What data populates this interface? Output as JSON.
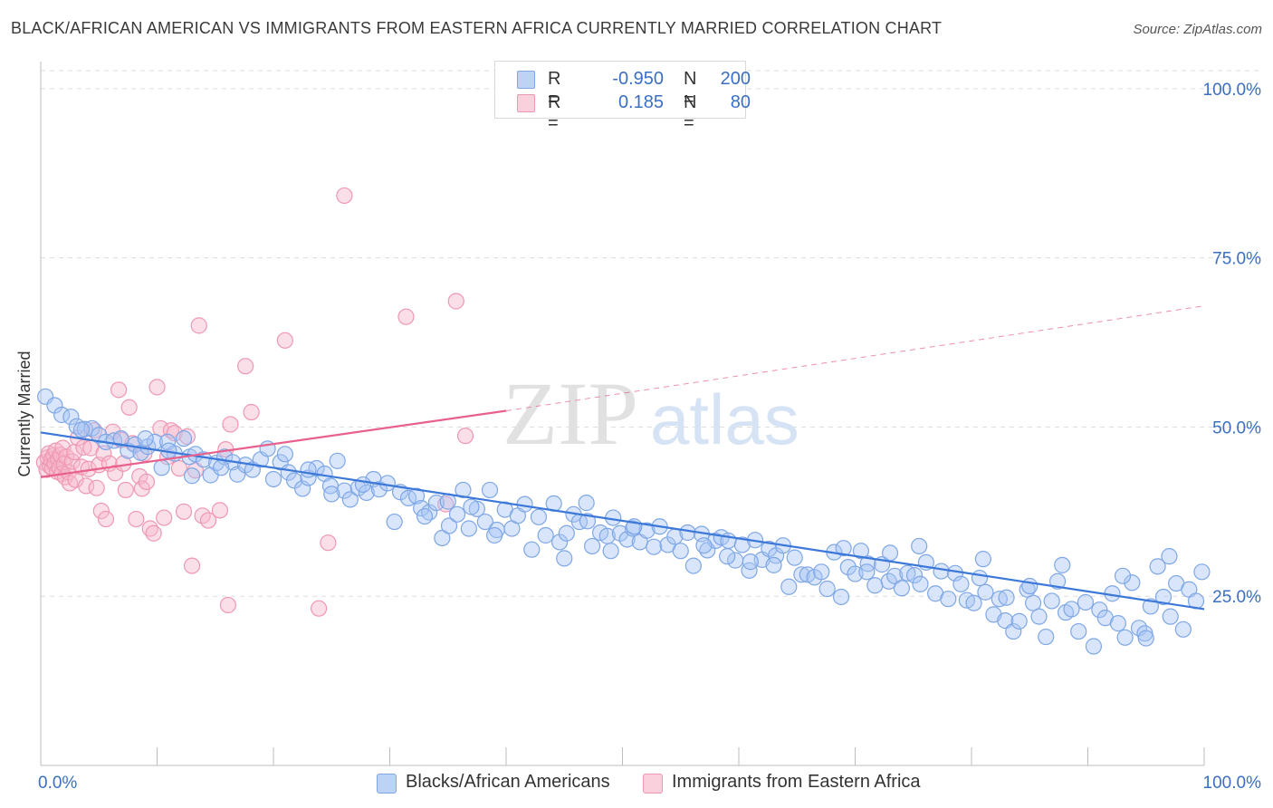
{
  "title": "BLACK/AFRICAN AMERICAN VS IMMIGRANTS FROM EASTERN AFRICA CURRENTLY MARRIED CORRELATION CHART",
  "source": "Source: ZipAtlas.com",
  "watermark": {
    "zip": "ZIP",
    "atlas": "atlas"
  },
  "legend": {
    "r_label": "R =",
    "n_label": "N =",
    "rows": [
      {
        "r": "-0.950",
        "n": "200",
        "color": "#a9c6f3"
      },
      {
        "r": "0.185",
        "n": "80",
        "color": "#f7b8cb"
      }
    ]
  },
  "colors": {
    "blue": "#3b78d8",
    "pink": "#e8608c",
    "blue_fill": "#a9c6f3",
    "pink_fill": "#f7b8cb",
    "tick_text": "#3a6fc4"
  },
  "chart_data": {
    "type": "scatter",
    "title": "BLACK/AFRICAN AMERICAN VS IMMIGRANTS FROM EASTERN AFRICA CURRENTLY MARRIED CORRELATION CHART",
    "xlabel": "",
    "ylabel": "Currently Married",
    "xlim": [
      0,
      100
    ],
    "ylim": [
      0,
      104
    ],
    "x_tick_labels": [
      "0.0%",
      "100.0%"
    ],
    "y_tick_labels": [
      "25.0%",
      "50.0%",
      "75.0%",
      "100.0%"
    ],
    "y_ticks": [
      25,
      50,
      75,
      100
    ],
    "grid": true,
    "legend_position": "bottom",
    "series": [
      {
        "name": "Blacks/African Americans",
        "color": "#3b78d8",
        "r": -0.95,
        "n": 200,
        "trend": {
          "x": [
            0,
            100
          ],
          "y": [
            49.2,
            23.1
          ]
        },
        "points": [
          [
            0.4,
            54.5
          ],
          [
            1.2,
            53.2
          ],
          [
            1.8,
            51.8
          ],
          [
            2.6,
            51.5
          ],
          [
            3.1,
            50.1
          ],
          [
            3.8,
            49.7
          ],
          [
            4.4,
            49.8
          ],
          [
            5.0,
            48.8
          ],
          [
            5.6,
            47.8
          ],
          [
            6.3,
            48.0
          ],
          [
            6.9,
            48.3
          ],
          [
            7.5,
            46.5
          ],
          [
            8.1,
            47.4
          ],
          [
            8.6,
            46.2
          ],
          [
            9.2,
            47.1
          ],
          [
            9.8,
            47.8
          ],
          [
            10.4,
            44.0
          ],
          [
            10.9,
            47.8
          ],
          [
            11.5,
            46.1
          ],
          [
            12.3,
            48.3
          ],
          [
            12.8,
            45.6
          ],
          [
            13.3,
            46.0
          ],
          [
            14.0,
            45.2
          ],
          [
            14.6,
            42.9
          ],
          [
            15.1,
            44.7
          ],
          [
            15.8,
            45.6
          ],
          [
            16.5,
            44.8
          ],
          [
            16.9,
            43.0
          ],
          [
            17.6,
            44.4
          ],
          [
            18.2,
            43.7
          ],
          [
            18.9,
            45.2
          ],
          [
            19.5,
            46.8
          ],
          [
            20.0,
            42.3
          ],
          [
            20.6,
            44.8
          ],
          [
            21.3,
            43.3
          ],
          [
            21.8,
            42.1
          ],
          [
            22.5,
            40.9
          ],
          [
            23.0,
            42.5
          ],
          [
            23.7,
            43.9
          ],
          [
            24.4,
            43.1
          ],
          [
            24.9,
            41.3
          ],
          [
            25.5,
            45.0
          ],
          [
            26.1,
            40.6
          ],
          [
            26.6,
            39.3
          ],
          [
            27.3,
            41.0
          ],
          [
            28.0,
            40.3
          ],
          [
            28.6,
            42.3
          ],
          [
            29.1,
            40.8
          ],
          [
            29.8,
            41.7
          ],
          [
            30.4,
            36.0
          ],
          [
            30.9,
            40.4
          ],
          [
            31.6,
            39.5
          ],
          [
            32.3,
            39.8
          ],
          [
            32.7,
            38.0
          ],
          [
            33.4,
            37.4
          ],
          [
            34.0,
            38.8
          ],
          [
            34.5,
            33.6
          ],
          [
            35.1,
            35.4
          ],
          [
            35.8,
            37.1
          ],
          [
            36.3,
            40.7
          ],
          [
            36.8,
            35.0
          ],
          [
            37.5,
            37.9
          ],
          [
            38.2,
            36.0
          ],
          [
            38.6,
            40.7
          ],
          [
            39.2,
            34.8
          ],
          [
            39.9,
            37.8
          ],
          [
            40.5,
            35.0
          ],
          [
            41.0,
            36.9
          ],
          [
            41.6,
            38.6
          ],
          [
            42.2,
            31.9
          ],
          [
            42.8,
            36.7
          ],
          [
            43.4,
            34.0
          ],
          [
            44.1,
            38.7
          ],
          [
            44.6,
            33.0
          ],
          [
            45.2,
            34.3
          ],
          [
            45.8,
            37.1
          ],
          [
            46.3,
            36.0
          ],
          [
            46.9,
            38.8
          ],
          [
            47.4,
            32.4
          ],
          [
            48.1,
            34.4
          ],
          [
            48.7,
            33.9
          ],
          [
            49.2,
            36.6
          ],
          [
            49.8,
            34.3
          ],
          [
            50.4,
            33.4
          ],
          [
            50.9,
            35.0
          ],
          [
            51.5,
            33.0
          ],
          [
            52.1,
            34.7
          ],
          [
            52.7,
            32.3
          ],
          [
            53.2,
            35.3
          ],
          [
            53.9,
            32.6
          ],
          [
            54.5,
            33.8
          ],
          [
            55.0,
            31.7
          ],
          [
            55.6,
            34.4
          ],
          [
            56.1,
            29.5
          ],
          [
            56.8,
            34.2
          ],
          [
            57.3,
            31.8
          ],
          [
            58.0,
            33.2
          ],
          [
            58.5,
            33.7
          ],
          [
            59.1,
            33.2
          ],
          [
            59.7,
            30.3
          ],
          [
            60.3,
            32.6
          ],
          [
            60.9,
            28.8
          ],
          [
            61.4,
            33.3
          ],
          [
            62.0,
            30.4
          ],
          [
            62.6,
            32.0
          ],
          [
            63.2,
            31.0
          ],
          [
            63.8,
            32.5
          ],
          [
            64.3,
            26.4
          ],
          [
            64.8,
            30.7
          ],
          [
            65.4,
            28.2
          ],
          [
            65.9,
            28.2
          ],
          [
            66.5,
            27.8
          ],
          [
            67.1,
            28.6
          ],
          [
            67.6,
            26.1
          ],
          [
            68.2,
            31.5
          ],
          [
            68.8,
            24.9
          ],
          [
            69.4,
            29.3
          ],
          [
            70.0,
            28.3
          ],
          [
            70.5,
            31.7
          ],
          [
            71.1,
            29.8
          ],
          [
            71.7,
            26.6
          ],
          [
            72.3,
            29.7
          ],
          [
            72.9,
            27.2
          ],
          [
            73.4,
            28.0
          ],
          [
            74.0,
            26.2
          ],
          [
            74.5,
            28.4
          ],
          [
            75.1,
            28.1
          ],
          [
            75.6,
            26.8
          ],
          [
            76.1,
            30.0
          ],
          [
            76.9,
            25.4
          ],
          [
            77.4,
            28.7
          ],
          [
            78.0,
            24.6
          ],
          [
            78.6,
            28.4
          ],
          [
            79.1,
            26.8
          ],
          [
            79.6,
            24.4
          ],
          [
            80.2,
            24.0
          ],
          [
            80.7,
            27.7
          ],
          [
            81.2,
            25.6
          ],
          [
            81.9,
            22.3
          ],
          [
            82.4,
            24.6
          ],
          [
            82.9,
            21.4
          ],
          [
            83.6,
            19.8
          ],
          [
            84.1,
            21.3
          ],
          [
            84.8,
            26.0
          ],
          [
            85.3,
            24.0
          ],
          [
            85.8,
            22.0
          ],
          [
            86.4,
            19.0
          ],
          [
            86.9,
            24.3
          ],
          [
            87.4,
            27.2
          ],
          [
            88.1,
            22.6
          ],
          [
            88.6,
            23.1
          ],
          [
            89.2,
            19.8
          ],
          [
            89.8,
            24.1
          ],
          [
            90.5,
            17.6
          ],
          [
            91.0,
            23.0
          ],
          [
            91.5,
            21.8
          ],
          [
            92.1,
            25.4
          ],
          [
            92.6,
            21.0
          ],
          [
            93.2,
            18.9
          ],
          [
            93.8,
            27.0
          ],
          [
            94.4,
            20.3
          ],
          [
            94.9,
            19.5
          ],
          [
            95.4,
            23.5
          ],
          [
            96.0,
            29.4
          ],
          [
            96.5,
            24.9
          ],
          [
            97.1,
            22.0
          ],
          [
            97.6,
            26.9
          ],
          [
            98.2,
            20.1
          ],
          [
            98.7,
            26.0
          ],
          [
            99.3,
            24.3
          ],
          [
            99.8,
            28.6
          ],
          [
            3.5,
            49.6
          ],
          [
            15.5,
            44.0
          ],
          [
            27.7,
            41.5
          ],
          [
            39.0,
            34.0
          ],
          [
            51.0,
            35.3
          ],
          [
            63.0,
            29.6
          ],
          [
            75.5,
            32.4
          ],
          [
            87.8,
            29.6
          ],
          [
            13.0,
            42.8
          ],
          [
            25.0,
            40.1
          ],
          [
            37.0,
            38.2
          ],
          [
            49.0,
            31.7
          ],
          [
            61.0,
            30.1
          ],
          [
            73.0,
            31.4
          ],
          [
            85.0,
            26.5
          ],
          [
            97.0,
            30.9
          ],
          [
            9.0,
            48.3
          ],
          [
            21.0,
            46.0
          ],
          [
            33.0,
            36.8
          ],
          [
            45.0,
            30.6
          ],
          [
            57.0,
            32.5
          ],
          [
            69.0,
            32.1
          ],
          [
            81.0,
            30.5
          ],
          [
            93.0,
            28.0
          ],
          [
            11.0,
            46.5
          ],
          [
            23.0,
            43.7
          ],
          [
            35.0,
            39.0
          ],
          [
            47.0,
            36.1
          ],
          [
            59.0,
            30.9
          ],
          [
            71.0,
            28.6
          ],
          [
            83.0,
            24.8
          ],
          [
            95.0,
            18.8
          ]
        ]
      },
      {
        "name": "Immigrants from Eastern Africa",
        "color": "#e8608c",
        "r": 0.185,
        "n": 80,
        "trend": {
          "x": [
            0,
            40
          ],
          "y": [
            42.6,
            52.4
          ]
        },
        "trend_dashed": {
          "x": [
            40,
            100
          ],
          "y": [
            52.4,
            67.9
          ]
        },
        "points": [
          [
            0.3,
            44.8
          ],
          [
            0.5,
            43.7
          ],
          [
            0.6,
            45.5
          ],
          [
            0.7,
            46.1
          ],
          [
            0.8,
            44.2
          ],
          [
            0.9,
            45.1
          ],
          [
            1.0,
            43.9
          ],
          [
            1.1,
            45.8
          ],
          [
            1.2,
            44.6
          ],
          [
            1.3,
            46.5
          ],
          [
            1.4,
            43.4
          ],
          [
            1.5,
            45.2
          ],
          [
            1.6,
            44.0
          ],
          [
            1.7,
            45.9
          ],
          [
            1.8,
            43.1
          ],
          [
            1.9,
            46.9
          ],
          [
            2.0,
            44.5
          ],
          [
            2.1,
            42.6
          ],
          [
            2.2,
            45.6
          ],
          [
            2.4,
            43.3
          ],
          [
            2.5,
            41.7
          ],
          [
            2.7,
            44.9
          ],
          [
            2.9,
            46.3
          ],
          [
            3.0,
            42.2
          ],
          [
            3.2,
            48.4
          ],
          [
            3.5,
            44.1
          ],
          [
            3.7,
            47.0
          ],
          [
            3.9,
            41.3
          ],
          [
            4.1,
            43.8
          ],
          [
            4.3,
            46.9
          ],
          [
            4.6,
            49.5
          ],
          [
            4.8,
            41.0
          ],
          [
            5.0,
            44.4
          ],
          [
            5.2,
            37.6
          ],
          [
            5.4,
            46.1
          ],
          [
            5.6,
            36.4
          ],
          [
            5.9,
            44.6
          ],
          [
            6.2,
            49.3
          ],
          [
            6.4,
            43.2
          ],
          [
            6.7,
            55.5
          ],
          [
            6.9,
            48.1
          ],
          [
            7.1,
            44.6
          ],
          [
            7.3,
            40.7
          ],
          [
            7.6,
            52.9
          ],
          [
            7.9,
            47.6
          ],
          [
            8.2,
            36.4
          ],
          [
            8.5,
            42.7
          ],
          [
            8.7,
            40.9
          ],
          [
            8.9,
            46.1
          ],
          [
            9.1,
            41.9
          ],
          [
            9.4,
            35.0
          ],
          [
            9.7,
            34.3
          ],
          [
            10.0,
            55.9
          ],
          [
            10.3,
            49.8
          ],
          [
            10.6,
            36.6
          ],
          [
            10.9,
            45.6
          ],
          [
            11.2,
            49.5
          ],
          [
            11.5,
            49.1
          ],
          [
            11.9,
            43.9
          ],
          [
            12.3,
            37.5
          ],
          [
            12.6,
            48.6
          ],
          [
            13.0,
            29.5
          ],
          [
            13.3,
            43.6
          ],
          [
            13.6,
            65.0
          ],
          [
            13.9,
            36.9
          ],
          [
            14.4,
            36.2
          ],
          [
            15.4,
            37.7
          ],
          [
            15.9,
            46.7
          ],
          [
            16.1,
            23.7
          ],
          [
            16.3,
            50.4
          ],
          [
            17.6,
            59.0
          ],
          [
            18.1,
            52.2
          ],
          [
            21.0,
            62.8
          ],
          [
            23.9,
            23.2
          ],
          [
            24.7,
            32.9
          ],
          [
            26.1,
            84.2
          ],
          [
            31.4,
            66.3
          ],
          [
            34.8,
            38.6
          ],
          [
            35.7,
            68.6
          ],
          [
            36.5,
            48.7
          ]
        ]
      }
    ]
  }
}
